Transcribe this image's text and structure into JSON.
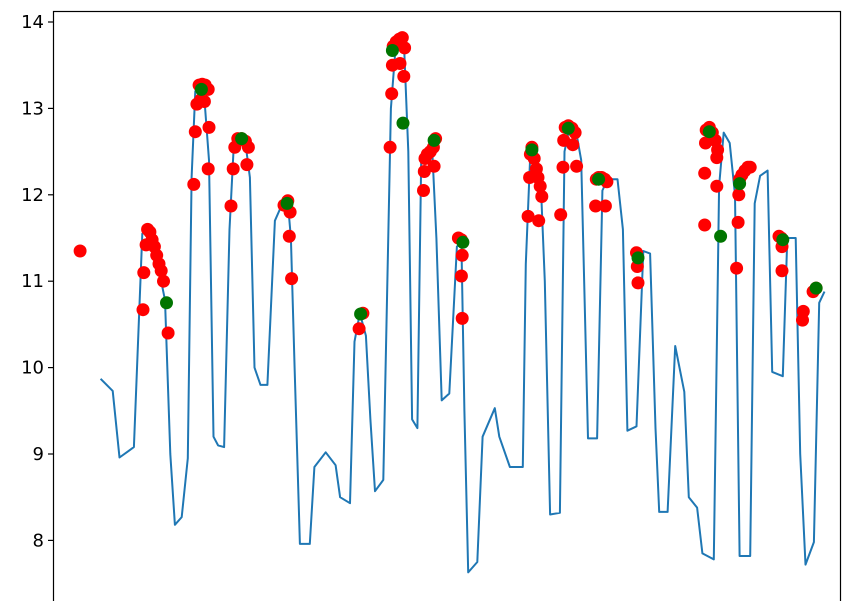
{
  "chart_data": {
    "type": "line",
    "title": "",
    "xlabel": "",
    "ylabel": "",
    "ylim": [
      7.3,
      14.12
    ],
    "xlim": [
      0,
      100
    ],
    "y_ticks": [
      {
        "value": 8,
        "label": "8"
      },
      {
        "value": 9,
        "label": "9"
      },
      {
        "value": 10,
        "label": "10"
      },
      {
        "value": 11,
        "label": "11"
      },
      {
        "value": 12,
        "label": "12"
      },
      {
        "value": 13,
        "label": "13"
      },
      {
        "value": 14,
        "label": "14"
      }
    ],
    "grid": false,
    "series": [
      {
        "kind": "line",
        "color": "#1f77b4",
        "points": [
          [
            4.3,
            9.87
          ],
          [
            5.9,
            9.73
          ],
          [
            6.8,
            8.96
          ],
          [
            8.7,
            9.08
          ],
          [
            9.8,
            11.55
          ],
          [
            10.5,
            11.58
          ],
          [
            11.2,
            11.4
          ],
          [
            11.8,
            11.2
          ],
          [
            12.3,
            11.0
          ],
          [
            12.8,
            10.78
          ],
          [
            13.5,
            9.0
          ],
          [
            14.1,
            8.18
          ],
          [
            15.0,
            8.27
          ],
          [
            15.8,
            8.95
          ],
          [
            16.3,
            12.2
          ],
          [
            16.8,
            13.2
          ],
          [
            17.9,
            13.22
          ],
          [
            18.6,
            12.4
          ],
          [
            19.2,
            9.2
          ],
          [
            19.8,
            9.1
          ],
          [
            20.6,
            9.08
          ],
          [
            21.3,
            11.6
          ],
          [
            21.9,
            12.62
          ],
          [
            23.4,
            12.6
          ],
          [
            24.0,
            12.2
          ],
          [
            24.6,
            10.0
          ],
          [
            25.4,
            9.8
          ],
          [
            26.3,
            9.8
          ],
          [
            27.3,
            11.7
          ],
          [
            28.3,
            11.9
          ],
          [
            29.0,
            11.92
          ],
          [
            29.4,
            11.5
          ],
          [
            29.9,
            10.0
          ],
          [
            30.6,
            7.96
          ],
          [
            31.9,
            7.96
          ],
          [
            32.5,
            8.85
          ],
          [
            34.0,
            9.02
          ],
          [
            35.3,
            8.87
          ],
          [
            35.9,
            8.5
          ],
          [
            37.2,
            8.43
          ],
          [
            37.8,
            10.3
          ],
          [
            38.5,
            10.63
          ],
          [
            39.3,
            10.37
          ],
          [
            39.9,
            9.4
          ],
          [
            40.5,
            8.57
          ],
          [
            41.6,
            8.7
          ],
          [
            42.6,
            13.0
          ],
          [
            43.3,
            13.8
          ],
          [
            44.3,
            13.8
          ],
          [
            44.9,
            12.5
          ],
          [
            45.4,
            9.4
          ],
          [
            46.1,
            9.3
          ],
          [
            46.6,
            12.4
          ],
          [
            47.4,
            12.55
          ],
          [
            48.0,
            12.62
          ],
          [
            48.6,
            11.5
          ],
          [
            49.3,
            9.62
          ],
          [
            50.3,
            9.7
          ],
          [
            51.3,
            11.4
          ],
          [
            51.9,
            11.45
          ],
          [
            52.3,
            9.5
          ],
          [
            52.8,
            7.63
          ],
          [
            54.0,
            7.75
          ],
          [
            54.7,
            9.2
          ],
          [
            56.3,
            9.53
          ],
          [
            56.9,
            9.2
          ],
          [
            58.3,
            8.85
          ],
          [
            60.0,
            8.85
          ],
          [
            60.4,
            11.2
          ],
          [
            61.0,
            12.5
          ],
          [
            61.6,
            12.42
          ],
          [
            62.3,
            12.3
          ],
          [
            62.9,
            11.0
          ],
          [
            63.6,
            8.3
          ],
          [
            64.9,
            8.32
          ],
          [
            65.5,
            12.5
          ],
          [
            66.1,
            12.75
          ],
          [
            67.1,
            12.7
          ],
          [
            67.7,
            12.4
          ],
          [
            68.6,
            9.18
          ],
          [
            69.8,
            9.18
          ],
          [
            70.5,
            12.05
          ],
          [
            71.2,
            12.18
          ],
          [
            72.5,
            12.18
          ],
          [
            73.2,
            11.6
          ],
          [
            73.8,
            9.27
          ],
          [
            75.0,
            9.32
          ],
          [
            75.9,
            11.35
          ],
          [
            76.8,
            11.32
          ],
          [
            77.5,
            9.3
          ],
          [
            78.0,
            8.33
          ],
          [
            79.1,
            8.33
          ],
          [
            80.1,
            10.25
          ],
          [
            81.3,
            9.72
          ],
          [
            81.9,
            8.5
          ],
          [
            83.0,
            8.38
          ],
          [
            83.7,
            7.85
          ],
          [
            85.2,
            7.78
          ],
          [
            85.9,
            12.1
          ],
          [
            86.5,
            12.72
          ],
          [
            87.3,
            12.6
          ],
          [
            88.0,
            12.0
          ],
          [
            88.6,
            7.82
          ],
          [
            90.0,
            7.82
          ],
          [
            90.6,
            11.9
          ],
          [
            91.3,
            12.22
          ],
          [
            92.3,
            12.28
          ],
          [
            92.9,
            9.95
          ],
          [
            94.3,
            9.9
          ],
          [
            94.9,
            11.5
          ],
          [
            96.0,
            11.5
          ],
          [
            96.6,
            9.0
          ],
          [
            97.3,
            7.72
          ],
          [
            98.4,
            7.98
          ],
          [
            99.1,
            10.75
          ],
          [
            99.8,
            10.88
          ]
        ]
      },
      {
        "kind": "scatter",
        "color": "#ff0000",
        "points": [
          [
            1.6,
            11.35
          ],
          [
            10.0,
            11.1
          ],
          [
            10.3,
            11.42
          ],
          [
            10.5,
            11.6
          ],
          [
            10.8,
            11.57
          ],
          [
            11.1,
            11.48
          ],
          [
            11.4,
            11.4
          ],
          [
            11.7,
            11.3
          ],
          [
            12.0,
            11.2
          ],
          [
            12.3,
            11.12
          ],
          [
            12.6,
            11.0
          ],
          [
            9.9,
            10.67
          ],
          [
            13.2,
            10.4
          ],
          [
            16.6,
            12.12
          ],
          [
            16.8,
            12.73
          ],
          [
            17.0,
            13.05
          ],
          [
            17.3,
            13.27
          ],
          [
            17.7,
            13.28
          ],
          [
            18.1,
            13.27
          ],
          [
            18.5,
            13.22
          ],
          [
            17.5,
            13.1
          ],
          [
            18.0,
            13.08
          ],
          [
            18.6,
            12.78
          ],
          [
            18.5,
            12.3
          ],
          [
            21.5,
            11.87
          ],
          [
            21.8,
            12.3
          ],
          [
            22.0,
            12.55
          ],
          [
            22.4,
            12.65
          ],
          [
            22.9,
            12.65
          ],
          [
            23.4,
            12.62
          ],
          [
            23.8,
            12.55
          ],
          [
            23.6,
            12.35
          ],
          [
            28.5,
            11.88
          ],
          [
            29.0,
            11.93
          ],
          [
            29.3,
            11.8
          ],
          [
            29.2,
            11.52
          ],
          [
            29.5,
            11.03
          ],
          [
            38.4,
            10.45
          ],
          [
            38.9,
            10.63
          ],
          [
            42.5,
            12.55
          ],
          [
            42.7,
            13.17
          ],
          [
            42.8,
            13.5
          ],
          [
            42.9,
            13.72
          ],
          [
            43.3,
            13.77
          ],
          [
            43.7,
            13.8
          ],
          [
            44.1,
            13.82
          ],
          [
            44.4,
            13.7
          ],
          [
            43.8,
            13.52
          ],
          [
            44.3,
            13.37
          ],
          [
            46.9,
            12.05
          ],
          [
            47.0,
            12.27
          ],
          [
            47.1,
            12.42
          ],
          [
            47.4,
            12.47
          ],
          [
            47.8,
            12.5
          ],
          [
            48.2,
            12.55
          ],
          [
            48.5,
            12.65
          ],
          [
            48.3,
            12.33
          ],
          [
            51.5,
            11.5
          ],
          [
            51.9,
            11.48
          ],
          [
            52.0,
            11.3
          ],
          [
            51.9,
            11.06
          ],
          [
            52.0,
            10.57
          ],
          [
            60.7,
            11.75
          ],
          [
            60.9,
            12.2
          ],
          [
            61.0,
            12.47
          ],
          [
            61.2,
            12.55
          ],
          [
            61.5,
            12.42
          ],
          [
            61.8,
            12.3
          ],
          [
            62.0,
            12.2
          ],
          [
            62.3,
            12.1
          ],
          [
            62.5,
            11.98
          ],
          [
            62.1,
            11.7
          ],
          [
            65.0,
            11.77
          ],
          [
            65.3,
            12.32
          ],
          [
            65.4,
            12.63
          ],
          [
            65.6,
            12.78
          ],
          [
            66.0,
            12.8
          ],
          [
            66.5,
            12.77
          ],
          [
            66.9,
            12.72
          ],
          [
            66.6,
            12.58
          ],
          [
            67.1,
            12.33
          ],
          [
            69.6,
            11.87
          ],
          [
            69.7,
            12.18
          ],
          [
            70.0,
            12.2
          ],
          [
            70.4,
            12.2
          ],
          [
            70.8,
            12.18
          ],
          [
            71.1,
            12.15
          ],
          [
            70.9,
            11.87
          ],
          [
            75.0,
            11.33
          ],
          [
            75.1,
            11.17
          ],
          [
            75.2,
            10.98
          ],
          [
            84.0,
            11.65
          ],
          [
            84.0,
            12.25
          ],
          [
            84.1,
            12.6
          ],
          [
            84.2,
            12.75
          ],
          [
            84.6,
            12.78
          ],
          [
            85.0,
            12.72
          ],
          [
            85.4,
            12.63
          ],
          [
            85.7,
            12.52
          ],
          [
            85.6,
            12.43
          ],
          [
            85.6,
            12.1
          ],
          [
            88.2,
            11.15
          ],
          [
            88.4,
            11.68
          ],
          [
            88.5,
            12.0
          ],
          [
            88.6,
            12.18
          ],
          [
            88.9,
            12.23
          ],
          [
            89.3,
            12.28
          ],
          [
            89.7,
            12.32
          ],
          [
            90.0,
            12.32
          ],
          [
            93.8,
            11.52
          ],
          [
            94.1,
            11.5
          ],
          [
            94.2,
            11.4
          ],
          [
            94.2,
            11.12
          ],
          [
            96.9,
            10.55
          ],
          [
            97.0,
            10.65
          ],
          [
            98.3,
            10.88
          ],
          [
            98.7,
            10.92
          ]
        ]
      },
      {
        "kind": "scatter",
        "color": "#007500",
        "points": [
          [
            13.0,
            10.75
          ],
          [
            17.6,
            13.22
          ],
          [
            22.9,
            12.65
          ],
          [
            28.9,
            11.9
          ],
          [
            38.6,
            10.62
          ],
          [
            42.8,
            13.67
          ],
          [
            44.2,
            12.83
          ],
          [
            48.3,
            12.63
          ],
          [
            52.1,
            11.45
          ],
          [
            61.2,
            12.52
          ],
          [
            66.0,
            12.77
          ],
          [
            70.0,
            12.18
          ],
          [
            75.2,
            11.27
          ],
          [
            84.6,
            12.73
          ],
          [
            86.1,
            11.52
          ],
          [
            88.6,
            12.13
          ],
          [
            94.3,
            11.48
          ],
          [
            98.7,
            10.92
          ]
        ]
      }
    ]
  }
}
